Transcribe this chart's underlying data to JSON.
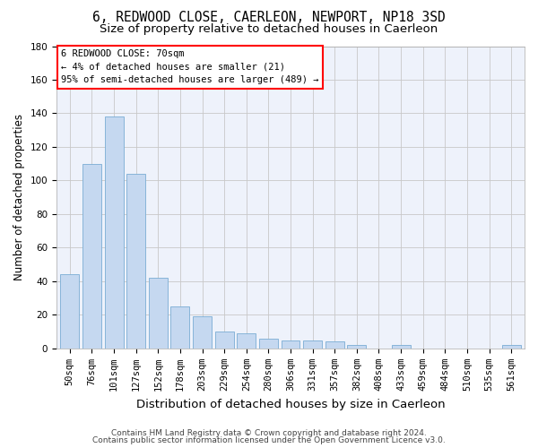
{
  "title_line1": "6, REDWOOD CLOSE, CAERLEON, NEWPORT, NP18 3SD",
  "title_line2": "Size of property relative to detached houses in Caerleon",
  "xlabel": "Distribution of detached houses by size in Caerleon",
  "ylabel": "Number of detached properties",
  "bar_color": "#c5d8f0",
  "bar_edge_color": "#7aadd4",
  "categories": [
    "50sqm",
    "76sqm",
    "101sqm",
    "127sqm",
    "152sqm",
    "178sqm",
    "203sqm",
    "229sqm",
    "254sqm",
    "280sqm",
    "306sqm",
    "331sqm",
    "357sqm",
    "382sqm",
    "408sqm",
    "433sqm",
    "459sqm",
    "484sqm",
    "510sqm",
    "535sqm",
    "561sqm"
  ],
  "values": [
    44,
    110,
    138,
    104,
    42,
    25,
    19,
    10,
    9,
    6,
    5,
    5,
    4,
    2,
    0,
    2,
    0,
    0,
    0,
    0,
    2
  ],
  "ylim": [
    0,
    180
  ],
  "yticks": [
    0,
    20,
    40,
    60,
    80,
    100,
    120,
    140,
    160,
    180
  ],
  "annotation_text": "6 REDWOOD CLOSE: 70sqm\n← 4% of detached houses are smaller (21)\n95% of semi-detached houses are larger (489) →",
  "footer_line1": "Contains HM Land Registry data © Crown copyright and database right 2024.",
  "footer_line2": "Contains public sector information licensed under the Open Government Licence v3.0.",
  "background_color": "#eef2fb",
  "grid_color": "#c8c8c8",
  "title_fontsize": 10.5,
  "subtitle_fontsize": 9.5,
  "axis_label_fontsize": 8.5,
  "tick_fontsize": 7.5,
  "annotation_fontsize": 7.5,
  "footer_fontsize": 6.5
}
